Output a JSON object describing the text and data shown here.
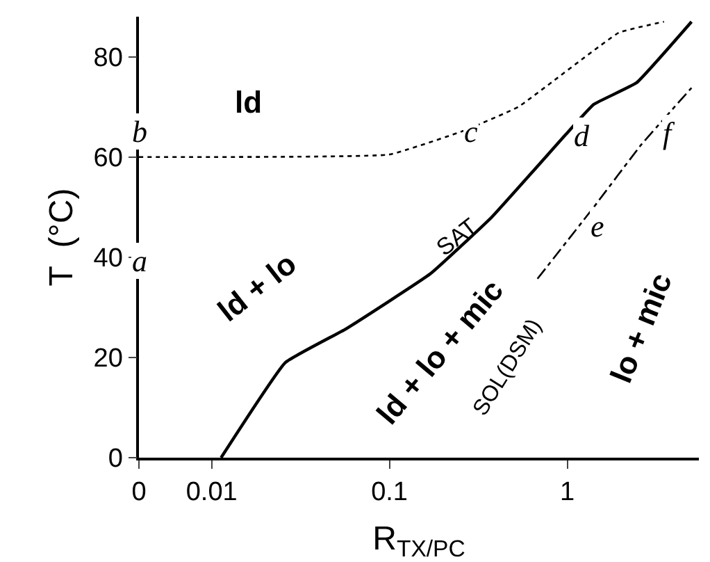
{
  "chart_data": {
    "type": "line",
    "xlabel": "R$_{TX/PC}$",
    "ylabel": "T  (°C)",
    "log": "x",
    "xlim": [
      0.0039,
      5.5
    ],
    "xticks": [
      {
        "value": 0.0039,
        "label": "0"
      },
      0.01,
      0.1,
      1
    ],
    "ylim": [
      0,
      88
    ],
    "yticks": [
      0,
      20,
      40,
      60,
      80
    ],
    "grid": false,
    "marker": "none",
    "series": [
      {
        "color": "#000000",
        "line_style": "solid",
        "x": [
          0.0113,
          0.026,
          0.057,
          0.17,
          0.376,
          0.97,
          1.41,
          2.45,
          5.0
        ],
        "values": [
          0,
          19,
          25.7,
          36.7,
          48,
          64.3,
          70.5,
          74.8,
          87
        ]
      },
      {
        "color": "#000000",
        "line_style": "dotted",
        "x": [
          0.0039,
          0.1,
          0.26,
          0.53,
          1.95,
          3.5
        ],
        "values": [
          60,
          60.5,
          65.2,
          70,
          84.8,
          87
        ]
      },
      {
        "color": "#000000",
        "line_style": "dashed",
        "x": [
          0.68,
          1.41,
          2.6,
          5.0
        ],
        "values": [
          35.7,
          50,
          62.4,
          73.8
        ]
      }
    ],
    "annotations": [
      "ld",
      "ld + lo",
      "ld + lo + mic",
      "lo + mic",
      "SAT",
      "SOL(DSM)",
      "a",
      {
        "text": "b",
        "x": 0.0039,
        "y": 60
      },
      {
        "text": "c",
        "x": 0.26,
        "y": 65.2
      },
      {
        "text": "d",
        "x": 0.97,
        "y": 64.3
      },
      {
        "text": "e",
        "x": 1.2,
        "y": 46.9
      },
      {
        "text": "f",
        "x": 3.0,
        "y": 64.9
      }
    ]
  }
}
